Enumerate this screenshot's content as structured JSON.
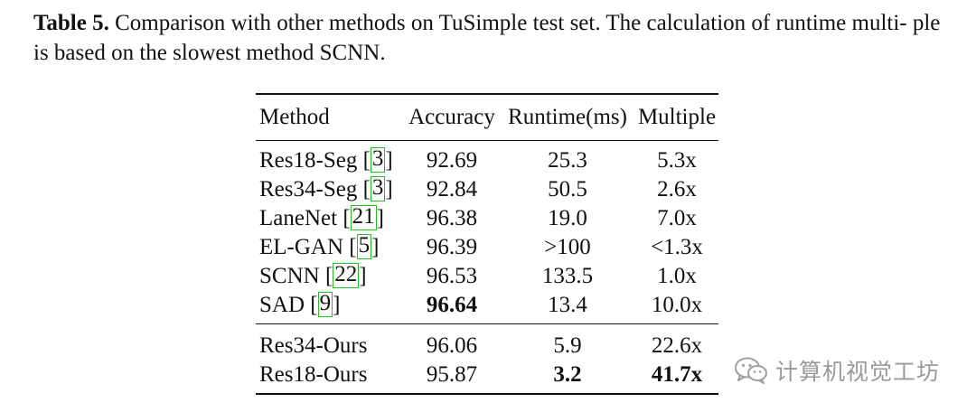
{
  "caption": {
    "label": "Table 5.",
    "text": " Comparison with other methods on TuSimple test set. The calculation of runtime multi- ple is based on the slowest method SCNN."
  },
  "table": {
    "headers": [
      "Method",
      "Accuracy",
      "Runtime(ms)",
      "Multiple"
    ],
    "group1": [
      {
        "method": "Res18-Seg ",
        "cite": "3",
        "accuracy": "92.69",
        "runtime": "25.3",
        "multiple": "5.3x"
      },
      {
        "method": "Res34-Seg ",
        "cite": "3",
        "accuracy": "92.84",
        "runtime": "50.5",
        "multiple": "2.6x"
      },
      {
        "method": "LaneNet ",
        "cite": "21",
        "accuracy": "96.38",
        "runtime": "19.0",
        "multiple": "7.0x"
      },
      {
        "method": "EL-GAN ",
        "cite": "5",
        "accuracy": "96.39",
        "runtime": ">100",
        "multiple": "<1.3x"
      },
      {
        "method": "SCNN ",
        "cite": "22",
        "accuracy": "96.53",
        "runtime": "133.5",
        "multiple": "1.0x"
      },
      {
        "method": "SAD ",
        "cite": "9",
        "accuracy": "96.64",
        "runtime": "13.4",
        "multiple": "10.0x"
      }
    ],
    "group2": [
      {
        "method": "Res34-Ours",
        "accuracy": "96.06",
        "runtime": "5.9",
        "multiple": "22.6x"
      },
      {
        "method": "Res18-Ours",
        "accuracy": "95.87",
        "runtime": "3.2",
        "multiple": "41.7x"
      }
    ]
  },
  "watermark": {
    "text": "计算机视觉工坊",
    "icon": "wechat-icon"
  }
}
